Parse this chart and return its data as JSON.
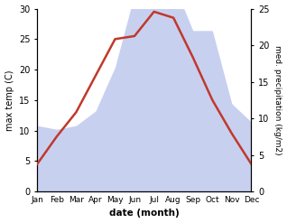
{
  "months": [
    "Jan",
    "Feb",
    "Mar",
    "Apr",
    "May",
    "Jun",
    "Jul",
    "Aug",
    "Sep",
    "Oct",
    "Nov",
    "Dec"
  ],
  "temp": [
    4.5,
    9.0,
    13.0,
    19.0,
    25.0,
    25.5,
    29.5,
    28.5,
    22.0,
    15.0,
    9.5,
    4.5
  ],
  "precip": [
    9.0,
    8.5,
    9.0,
    11.0,
    17.0,
    27.0,
    27.5,
    28.5,
    22.0,
    22.0,
    12.0,
    9.5
  ],
  "temp_color": "#c0392b",
  "precip_fill_color": "#c8d0f0",
  "temp_ylim": [
    0,
    30
  ],
  "precip_ylim": [
    0,
    25
  ],
  "temp_yticks": [
    0,
    5,
    10,
    15,
    20,
    25,
    30
  ],
  "precip_yticks": [
    0,
    5,
    10,
    15,
    20,
    25
  ],
  "xlabel": "date (month)",
  "ylabel_left": "max temp (C)",
  "ylabel_right": "med. precipitation (kg/m2)",
  "bg_color": "#ffffff"
}
